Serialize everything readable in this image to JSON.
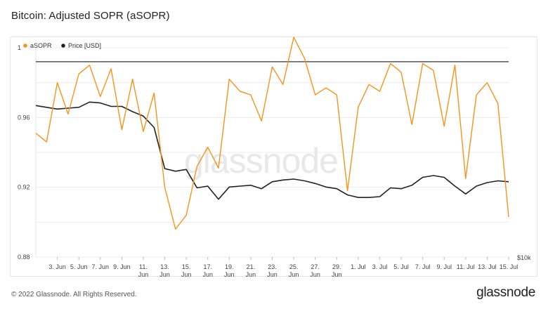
{
  "header": {
    "title": "Bitcoin: Adjusted SOPR (aSOPR)"
  },
  "footer": {
    "copyright": "© 2022 Glassnode. All Rights Reserved.",
    "brand": "glassnode"
  },
  "watermark": "glassnode",
  "chart_data": {
    "type": "line",
    "title": "Bitcoin: Adjusted SOPR (aSOPR)",
    "legend": [
      {
        "name": "aSOPR",
        "color": "#f7931a"
      },
      {
        "name": "Price [USD]",
        "color": "#222222"
      }
    ],
    "legend_position": "top-left",
    "grid": true,
    "ylim": [
      0.88,
      1.0
    ],
    "y_ticks": [
      "1",
      "0.96",
      "0.92",
      "0.88"
    ],
    "y_tick_values": [
      1.0,
      0.96,
      0.92,
      0.88
    ],
    "right_axis_label": "$10k",
    "reference_line": 0.992,
    "x_ticks": [
      {
        "l1": "3. Jun",
        "l2": "",
        "i": 2
      },
      {
        "l1": "5. Jun",
        "l2": "",
        "i": 4
      },
      {
        "l1": "7. Jun",
        "l2": "",
        "i": 6
      },
      {
        "l1": "9. Jun",
        "l2": "",
        "i": 8
      },
      {
        "l1": "11.",
        "l2": "Jun",
        "i": 10
      },
      {
        "l1": "13.",
        "l2": "Jun",
        "i": 12
      },
      {
        "l1": "15.",
        "l2": "Jun",
        "i": 14
      },
      {
        "l1": "17.",
        "l2": "Jun",
        "i": 16
      },
      {
        "l1": "19.",
        "l2": "Jun",
        "i": 18
      },
      {
        "l1": "21.",
        "l2": "Jun",
        "i": 20
      },
      {
        "l1": "23.",
        "l2": "Jun",
        "i": 22
      },
      {
        "l1": "25.",
        "l2": "Jun",
        "i": 24
      },
      {
        "l1": "27.",
        "l2": "Jun",
        "i": 26
      },
      {
        "l1": "29.",
        "l2": "Jun",
        "i": 28
      },
      {
        "l1": "1. Jul",
        "l2": "",
        "i": 30
      },
      {
        "l1": "3. Jul",
        "l2": "",
        "i": 32
      },
      {
        "l1": "5. Jul",
        "l2": "",
        "i": 34
      },
      {
        "l1": "7. Jul",
        "l2": "",
        "i": 36
      },
      {
        "l1": "9. Jul",
        "l2": "",
        "i": 38
      },
      {
        "l1": "11. Jul",
        "l2": "",
        "i": 40
      },
      {
        "l1": "13. Jul",
        "l2": "",
        "i": 42
      },
      {
        "l1": "15. Jul",
        "l2": "",
        "i": 44
      }
    ],
    "series": [
      {
        "name": "aSOPR",
        "color": "#f7931a",
        "values": [
          0.951,
          0.946,
          0.98,
          0.962,
          0.985,
          0.99,
          0.972,
          0.988,
          0.953,
          0.982,
          0.952,
          0.974,
          0.92,
          0.896,
          0.904,
          0.932,
          0.943,
          0.931,
          0.982,
          0.975,
          0.973,
          0.958,
          0.989,
          0.979,
          1.006,
          0.994,
          0.973,
          0.977,
          0.973,
          0.918,
          0.966,
          0.979,
          0.975,
          0.991,
          0.986,
          0.956,
          0.991,
          0.987,
          0.955,
          0.99,
          0.925,
          0.973,
          0.98,
          0.968,
          0.903
        ]
      },
      {
        "name": "Price [USD]",
        "color": "#222222",
        "values": [
          29.8,
          29.6,
          29.4,
          29.5,
          29.6,
          30.2,
          30.1,
          29.7,
          29.7,
          29.1,
          28.6,
          27.3,
          22.6,
          22.3,
          22.5,
          20.4,
          20.6,
          19.1,
          20.5,
          20.6,
          20.7,
          20.3,
          21.1,
          21.3,
          21.4,
          21.2,
          20.9,
          20.5,
          20.3,
          19.6,
          19.3,
          19.3,
          19.4,
          20.4,
          20.3,
          20.7,
          21.6,
          21.8,
          21.6,
          20.6,
          19.7,
          20.6,
          21.0,
          21.2,
          21.1
        ]
      }
    ]
  }
}
